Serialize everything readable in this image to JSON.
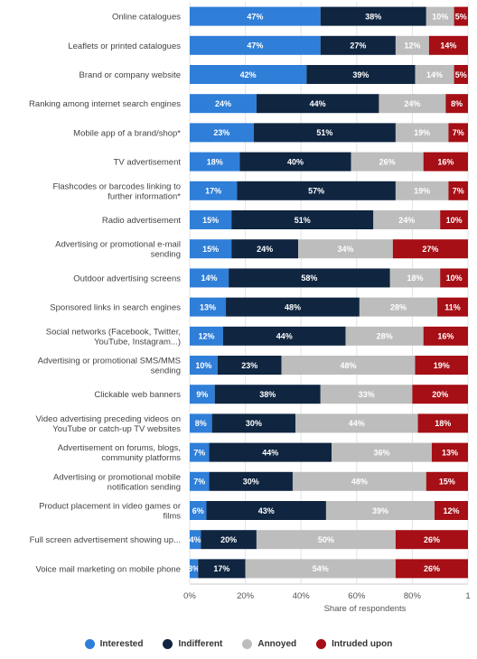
{
  "chart_data": {
    "type": "bar",
    "orientation": "horizontal",
    "stacked": true,
    "categories": [
      [
        "Online catalogues"
      ],
      [
        "Leaflets or printed catalogues"
      ],
      [
        "Brand or company website"
      ],
      [
        "Ranking among internet search engines"
      ],
      [
        "Mobile app of a brand/shop*"
      ],
      [
        "TV advertisement"
      ],
      [
        "Flashcodes or barcodes linking to",
        "further information*"
      ],
      [
        "Radio advertisement"
      ],
      [
        "Advertising or promotional e-mail",
        "sending"
      ],
      [
        "Outdoor advertising screens"
      ],
      [
        "Sponsored links in search engines"
      ],
      [
        "Social networks (Facebook, Twitter,",
        "YouTube, Instagram...)"
      ],
      [
        "Advertising or promotional SMS/MMS",
        "sending"
      ],
      [
        "Clickable web banners"
      ],
      [
        "Video advertising preceding videos on",
        "YouTube or catch-up TV websites"
      ],
      [
        "Advertisement on forums, blogs,",
        "community platforms"
      ],
      [
        "Advertising or promotional mobile",
        "notification sending"
      ],
      [
        "Product placement in video games or",
        "films"
      ],
      [
        "Full screen advertisement showing up..."
      ],
      [
        "Voice mail marketing on mobile phone"
      ]
    ],
    "series": [
      {
        "name": "Interested",
        "color": "#2f7ed8",
        "labelColor": "#ffffff",
        "values": [
          47,
          47,
          42,
          24,
          23,
          18,
          17,
          15,
          15,
          14,
          13,
          12,
          10,
          9,
          8,
          7,
          7,
          6,
          4,
          3
        ]
      },
      {
        "name": "Indifferent",
        "color": "#0f2540",
        "labelColor": "#ffffff",
        "values": [
          38,
          27,
          39,
          44,
          51,
          40,
          57,
          51,
          24,
          58,
          48,
          44,
          23,
          38,
          30,
          44,
          30,
          43,
          20,
          17
        ]
      },
      {
        "name": "Annoyed",
        "color": "#bdbdbd",
        "labelColor": "#ffffff",
        "values": [
          10,
          12,
          14,
          24,
          19,
          26,
          19,
          24,
          34,
          18,
          28,
          28,
          48,
          33,
          44,
          36,
          48,
          39,
          50,
          54
        ]
      },
      {
        "name": "Intruded upon",
        "color": "#a50f15",
        "labelColor": "#ffffff",
        "values": [
          5,
          14,
          5,
          8,
          7,
          16,
          7,
          10,
          27,
          10,
          11,
          16,
          19,
          20,
          18,
          13,
          15,
          12,
          26,
          26
        ]
      }
    ],
    "value_suffix": "%",
    "xlim": [
      0,
      100
    ],
    "ticks": [
      "0%",
      "20%",
      "40%",
      "60%",
      "80%",
      "1"
    ],
    "tick_values": [
      0,
      20,
      40,
      60,
      80,
      100
    ],
    "xlabel": "Share of respondents",
    "legend_position": "bottom",
    "grid": true
  }
}
